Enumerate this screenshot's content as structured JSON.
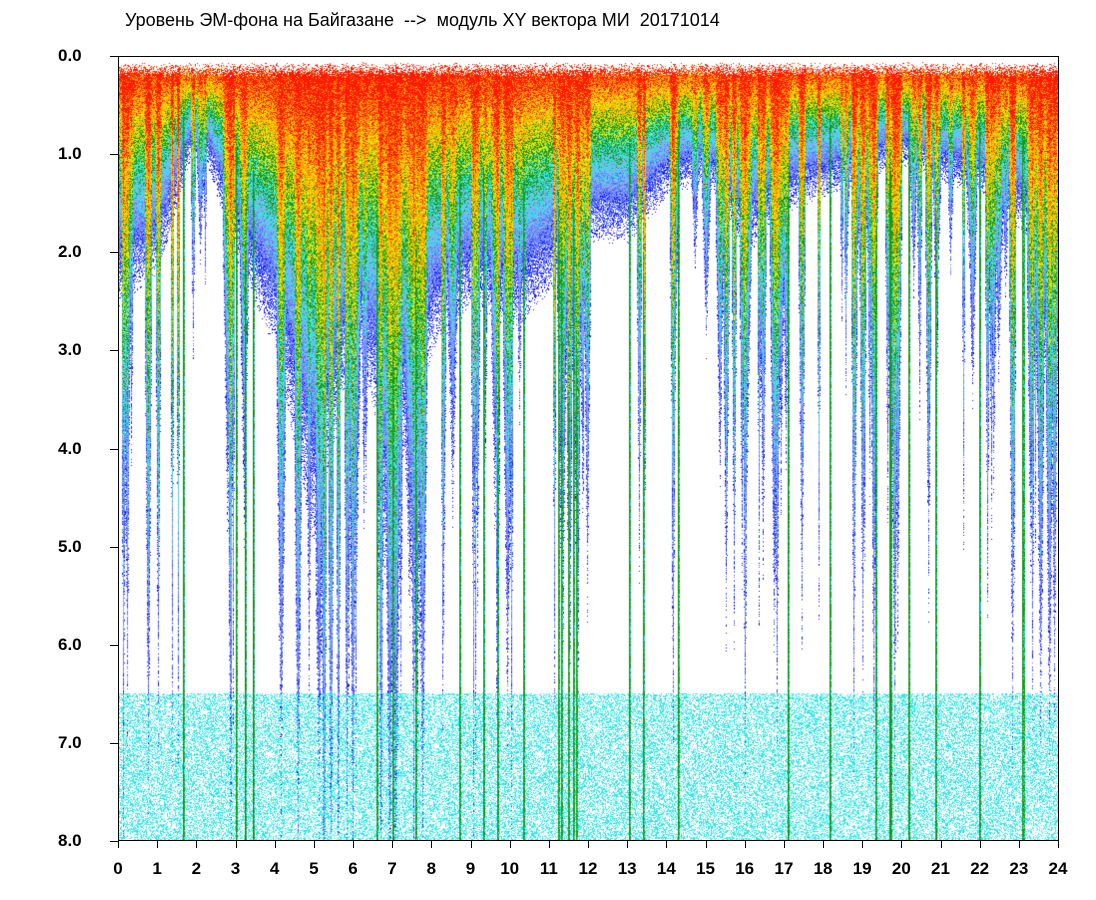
{
  "title": "Уровень ЭМ-фона на Байгазане  -->  модуль XY вектора МИ  20171014",
  "chart_data": {
    "type": "heatmap",
    "title": "Уровень ЭМ-фона на Байгазане  -->  модуль XY вектора МИ  20171014",
    "xlabel": "",
    "ylabel": "",
    "xlim": [
      0,
      24
    ],
    "ylim": [
      8.0,
      0.0
    ],
    "x_ticks": [
      "0",
      "1",
      "2",
      "3",
      "4",
      "5",
      "6",
      "7",
      "8",
      "9",
      "10",
      "11",
      "12",
      "13",
      "14",
      "15",
      "16",
      "17",
      "18",
      "19",
      "20",
      "21",
      "22",
      "23",
      "24"
    ],
    "y_ticks": [
      "0.0",
      "1.0",
      "2.0",
      "3.0",
      "4.0",
      "5.0",
      "6.0",
      "7.0",
      "8.0"
    ],
    "colormap": [
      "#1a1aff",
      "#5a72ff",
      "#8fa5f0",
      "#33e6e6",
      "#1a9a1a",
      "#e6e60a",
      "#ff9a00",
      "#ff1a00"
    ],
    "upper_envelope_hours": [
      0,
      1,
      2,
      3,
      4,
      5,
      6,
      7,
      8,
      9,
      10,
      11,
      12,
      13,
      14,
      15,
      16,
      17,
      18,
      19,
      20,
      21,
      22,
      23,
      24
    ],
    "upper_envelope_values": [
      1.6,
      1.4,
      0.5,
      1.3,
      1.9,
      3.2,
      1.8,
      2.8,
      1.9,
      1.6,
      1.8,
      1.5,
      1.2,
      1.2,
      0.9,
      0.8,
      1.3,
      1.0,
      0.9,
      0.8,
      0.7,
      0.8,
      0.9,
      1.1,
      1.6
    ],
    "grid": false,
    "legend": "none"
  }
}
